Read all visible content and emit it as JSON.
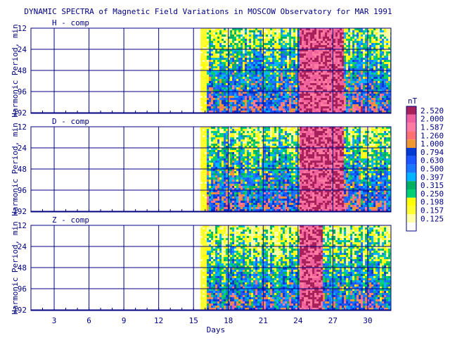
{
  "chart_data": {
    "type": "heatmap",
    "title": "DYNAMIC SPECTRA of Magnetic Field Variations in MOSCOW Observatory for MAR 1991",
    "xlabel": "Days",
    "ylabel": "Harmonic Period, min",
    "x_ticks": [
      "3",
      "6",
      "9",
      "12",
      "15",
      "18",
      "21",
      "24",
      "27",
      "30"
    ],
    "x_range": [
      1,
      32
    ],
    "y_ticks": [
      "12",
      "24",
      "48",
      "96",
      "192"
    ],
    "y_scale": "log2",
    "grid": true,
    "data_start_day": 15.6,
    "panels": [
      {
        "label": "H - comp",
        "disturbed_days": [
          [
            24.0,
            27.9
          ]
        ]
      },
      {
        "label": "D - comp",
        "disturbed_days": [
          [
            24.0,
            27.9
          ]
        ]
      },
      {
        "label": "Z - comp",
        "disturbed_days": [
          [
            24.0,
            26.0
          ]
        ]
      }
    ],
    "legend": {
      "unit": "nT",
      "placement": "right",
      "levels": [
        "2.520",
        "2.000",
        "1.587",
        "1.260",
        "1.000",
        "0.794",
        "0.630",
        "0.500",
        "0.397",
        "0.315",
        "0.250",
        "0.198",
        "0.157",
        "0.125"
      ],
      "colors": [
        "#a8205a",
        "#f0609c",
        "#ff7aa0",
        "#ff7070",
        "#f09830",
        "#003ad0",
        "#1c56ff",
        "#1a78ff",
        "#00b4ff",
        "#00b060",
        "#00d070",
        "#ffff00",
        "#ffff30",
        "#ffffa8"
      ]
    }
  },
  "colors": {
    "axis": "#000080",
    "grid": "#000080",
    "title": "#000080"
  }
}
